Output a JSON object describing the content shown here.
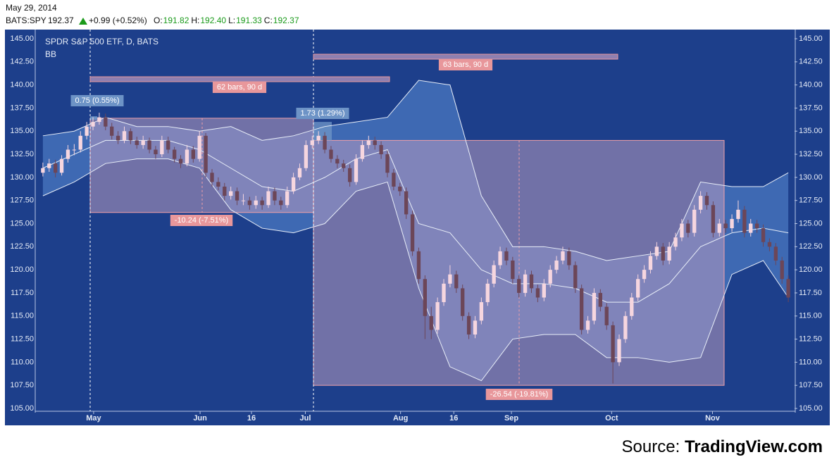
{
  "chart_data": {
    "type": "candlestick",
    "date": "May 29, 2014",
    "symbol": "BATS:SPY",
    "last": "192.37",
    "change": "+0.99 (+0.52%)",
    "ohlc_labels": [
      "O:",
      "H:",
      "L:",
      "C:"
    ],
    "ohlc_values": [
      "191.82",
      "192.40",
      "191.33",
      "192.37"
    ],
    "title": "SPDR S&P 500 ETF, D, BATS",
    "indicator": "BB",
    "annotations": [
      "0.75 (0.55%)",
      "62 bars, 90 d",
      "-10.24 (-7.51%)",
      "1.73 (1.29%)",
      "63 bars, 90 d",
      "-26.54 (-19.81%)"
    ],
    "source_prefix": "Source: ",
    "source": "TradingView.com",
    "up_color": "#f6d6df",
    "down_color": "#6c4658",
    "band_color": "#4a78c0",
    "line_color": "#e8eef8",
    "xlim": [
      -1,
      120
    ],
    "xticks": [
      {
        "value": 8.1,
        "label": "May"
      },
      {
        "value": 25.1,
        "label": "Jun"
      },
      {
        "value": 33.3,
        "label": "16"
      },
      {
        "value": 41.9,
        "label": "Jul"
      },
      {
        "value": 57.1,
        "label": "Aug"
      },
      {
        "value": 65.6,
        "label": "16"
      },
      {
        "value": 74.8,
        "label": "Sep"
      },
      {
        "value": 90.8,
        "label": "Oct"
      },
      {
        "value": 106.9,
        "label": "Nov"
      }
    ],
    "ylim": [
      105,
      145
    ],
    "yticks": [
      {
        "value": 105,
        "label": "105.00"
      },
      {
        "value": 107.5,
        "label": "107.50"
      },
      {
        "value": 110,
        "label": "110.00"
      },
      {
        "value": 112.5,
        "label": "112.50"
      },
      {
        "value": 115,
        "label": "115.00"
      },
      {
        "value": 117.5,
        "label": "117.50"
      },
      {
        "value": 120,
        "label": "120.00"
      },
      {
        "value": 122.5,
        "label": "122.50"
      },
      {
        "value": 125,
        "label": "125.00"
      },
      {
        "value": 127.5,
        "label": "127.50"
      },
      {
        "value": 130,
        "label": "130.00"
      },
      {
        "value": 132.5,
        "label": "132.50"
      },
      {
        "value": 135,
        "label": "135.00"
      },
      {
        "value": 137.5,
        "label": "137.50"
      },
      {
        "value": 140,
        "label": "140.00"
      },
      {
        "value": 142.5,
        "label": "142.50"
      },
      {
        "value": 145,
        "label": "145.00"
      }
    ],
    "candles": [
      [
        130.5,
        131.6,
        130.1,
        131
      ],
      [
        131,
        132,
        130.6,
        131.5
      ],
      [
        131.5,
        131.9,
        130,
        130.5
      ],
      [
        130.5,
        132.4,
        130.2,
        132
      ],
      [
        132,
        133.5,
        131.6,
        133
      ],
      [
        133,
        133.6,
        132.4,
        133
      ],
      [
        133,
        135,
        132.7,
        134.5
      ],
      [
        134.5,
        136,
        134.1,
        135.5
      ],
      [
        135.5,
        136.5,
        135.1,
        136
      ],
      [
        136,
        137,
        135.7,
        136.5
      ],
      [
        136.5,
        136.9,
        135.1,
        135.5
      ],
      [
        135.5,
        135.9,
        134.1,
        134.5
      ],
      [
        134.5,
        135,
        133.6,
        134
      ],
      [
        134,
        135.5,
        133.7,
        135
      ],
      [
        135,
        135.3,
        133.6,
        134
      ],
      [
        134,
        134.4,
        133.1,
        133.5
      ],
      [
        133.5,
        134.5,
        133.1,
        134
      ],
      [
        134,
        134.3,
        132.6,
        133
      ],
      [
        133,
        133.4,
        132,
        132.5
      ],
      [
        132.5,
        134.5,
        132.2,
        134
      ],
      [
        134,
        134.4,
        132.6,
        133
      ],
      [
        133,
        133.3,
        131.6,
        132
      ],
      [
        132,
        132.4,
        131,
        131.5
      ],
      [
        131.5,
        133.5,
        131.2,
        133
      ],
      [
        133,
        133.4,
        131.6,
        132
      ],
      [
        132,
        135,
        131.7,
        134.5
      ],
      [
        134.5,
        134.8,
        130,
        130.5
      ],
      [
        130.5,
        130.9,
        129,
        129.5
      ],
      [
        129.5,
        130,
        128.6,
        129
      ],
      [
        129,
        129.4,
        127.5,
        128
      ],
      [
        128,
        129,
        127.6,
        128.5
      ],
      [
        128.5,
        128.9,
        127,
        127.5
      ],
      [
        127.5,
        128.2,
        127,
        127.5
      ],
      [
        127.5,
        127.9,
        126.5,
        127
      ],
      [
        127,
        128,
        126.6,
        127.5
      ],
      [
        127.5,
        127.9,
        126.5,
        127
      ],
      [
        127,
        129,
        126.7,
        128.5
      ],
      [
        128.5,
        128.9,
        127,
        127.5
      ],
      [
        127.5,
        127.9,
        126.5,
        127
      ],
      [
        127,
        129,
        126.7,
        128.5
      ],
      [
        128.5,
        130.5,
        128.2,
        130
      ],
      [
        130,
        131.5,
        129.7,
        131
      ],
      [
        131,
        134,
        130.7,
        133.5
      ],
      [
        133.5,
        134.5,
        133.1,
        134
      ],
      [
        134,
        135,
        133.6,
        134.5
      ],
      [
        134.5,
        134.9,
        132.6,
        133
      ],
      [
        133,
        133.4,
        131.6,
        132
      ],
      [
        132,
        132.4,
        131,
        131.5
      ],
      [
        131.5,
        131.9,
        130.6,
        131
      ],
      [
        131,
        131.4,
        129,
        129.5
      ],
      [
        129.5,
        132.5,
        129.2,
        132
      ],
      [
        132,
        134,
        131.7,
        133.5
      ],
      [
        133.5,
        134.5,
        133.1,
        134
      ],
      [
        134,
        134.4,
        133,
        133.5
      ],
      [
        133.5,
        133.9,
        132,
        132.5
      ],
      [
        132.5,
        132.9,
        130,
        130.5
      ],
      [
        130.5,
        130.9,
        128.6,
        129
      ],
      [
        129,
        129.4,
        128,
        128.5
      ],
      [
        128.5,
        128.9,
        125.5,
        126
      ],
      [
        126,
        126.4,
        121.5,
        122
      ],
      [
        122,
        122.4,
        118.5,
        119
      ],
      [
        119,
        119.4,
        112.5,
        115
      ],
      [
        115,
        116,
        112.5,
        113.5
      ],
      [
        113.5,
        117,
        113.1,
        116.5
      ],
      [
        116.5,
        119,
        116.1,
        118.5
      ],
      [
        118.5,
        120.5,
        118.1,
        119.5
      ],
      [
        119.5,
        119.9,
        117.5,
        118
      ],
      [
        118,
        118.4,
        114.5,
        115
      ],
      [
        115,
        115.4,
        112.5,
        113
      ],
      [
        113,
        115,
        112.6,
        114.5
      ],
      [
        114.5,
        117,
        114.1,
        116.5
      ],
      [
        116.5,
        119,
        116.1,
        118.5
      ],
      [
        118.5,
        121,
        118.1,
        120.5
      ],
      [
        120.5,
        122.5,
        120.1,
        122
      ],
      [
        122,
        122.4,
        120.5,
        121
      ],
      [
        121,
        121.4,
        118.5,
        119
      ],
      [
        119,
        119.4,
        117,
        117.5
      ],
      [
        117.5,
        120,
        117.1,
        119.5
      ],
      [
        119.5,
        119.9,
        117.5,
        118
      ],
      [
        118,
        118.4,
        116.5,
        117
      ],
      [
        117,
        119,
        116.6,
        118.5
      ],
      [
        118.5,
        120.5,
        118.1,
        120
      ],
      [
        120,
        121.5,
        119.6,
        121
      ],
      [
        121,
        122.5,
        120.6,
        122
      ],
      [
        122,
        122.4,
        120,
        120.5
      ],
      [
        120.5,
        120.9,
        117.5,
        118
      ],
      [
        118,
        118.4,
        113,
        113.5
      ],
      [
        113.5,
        115,
        113.1,
        114.5
      ],
      [
        114.5,
        118,
        114.1,
        117.5
      ],
      [
        117.5,
        117.9,
        115.5,
        116
      ],
      [
        116,
        116.4,
        113.5,
        114
      ],
      [
        114,
        114.4,
        107.7,
        110
      ],
      [
        110,
        113,
        109.6,
        112.5
      ],
      [
        112.5,
        115.5,
        112.1,
        115
      ],
      [
        115,
        117.5,
        114.6,
        117
      ],
      [
        117,
        119.5,
        116.6,
        119
      ],
      [
        119,
        120.5,
        118.6,
        120
      ],
      [
        120,
        122,
        119.6,
        121.5
      ],
      [
        121.5,
        123,
        121.1,
        122.5
      ],
      [
        122.5,
        122.9,
        120.5,
        121
      ],
      [
        121,
        123,
        120.6,
        122.5
      ],
      [
        122.5,
        124,
        122.1,
        123.5
      ],
      [
        123.5,
        125.5,
        123.1,
        125
      ],
      [
        125,
        125.4,
        123.5,
        124
      ],
      [
        124,
        127,
        123.6,
        126.5
      ],
      [
        126.5,
        128.5,
        126.1,
        128
      ],
      [
        128,
        128.4,
        126.5,
        127
      ],
      [
        127,
        127.4,
        123.5,
        124
      ],
      [
        124,
        125.5,
        123.6,
        125
      ],
      [
        125,
        125.4,
        124,
        124.5
      ],
      [
        124.5,
        126,
        124.1,
        125.5
      ],
      [
        125.5,
        127.5,
        125.1,
        126.5
      ],
      [
        126.5,
        126.9,
        123.5,
        124
      ],
      [
        124,
        125.5,
        123.6,
        125
      ],
      [
        125,
        125.4,
        124,
        124.5
      ],
      [
        124.5,
        124.9,
        122.5,
        123
      ],
      [
        123,
        123.4,
        122,
        122.5
      ],
      [
        122.5,
        122.9,
        120.5,
        121
      ],
      [
        121,
        121.4,
        118.5,
        119
      ],
      [
        119,
        119.4,
        116.5,
        117
      ]
    ],
    "bb_x": [
      0,
      5,
      10,
      15,
      20,
      25,
      30,
      35,
      40,
      45,
      50,
      55,
      60,
      65,
      70,
      75,
      80,
      85,
      90,
      95,
      100,
      105,
      110,
      115,
      119
    ],
    "bb_upper": [
      134.5,
      135,
      136.5,
      135.5,
      135.5,
      135,
      135.5,
      134,
      134.5,
      135.5,
      136,
      136.5,
      140.5,
      140,
      128,
      122.5,
      122.5,
      122,
      121,
      121.5,
      122,
      129.5,
      129,
      129,
      130.5
    ],
    "bb_middle": [
      131,
      132.5,
      134,
      134,
      134,
      133,
      131,
      129,
      128.5,
      130,
      132,
      133,
      125,
      124,
      120,
      118.5,
      118.5,
      118,
      116.5,
      116.5,
      118.5,
      122.5,
      124,
      124.5,
      124
    ],
    "bb_lower": [
      128,
      129.5,
      131.5,
      132,
      132,
      131,
      126.5,
      124.5,
      124,
      125,
      128.5,
      129.5,
      118,
      109.5,
      108,
      112.5,
      113,
      113,
      110.5,
      110.5,
      110,
      110.5,
      119.5,
      121,
      117
    ]
  }
}
